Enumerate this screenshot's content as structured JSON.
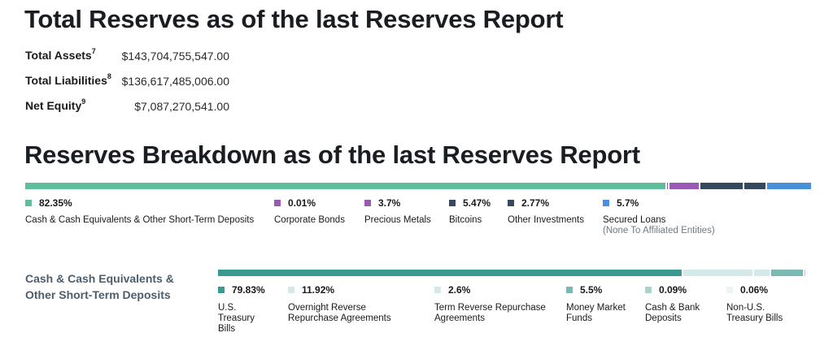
{
  "titles": {
    "total_reserves": "Total Reserves as of the last Reserves Report",
    "reserves_breakdown": "Reserves Breakdown as of the last Reserves Report"
  },
  "summary": [
    {
      "label": "Total Assets",
      "sup": "7",
      "value": "$143,704,755,547.00"
    },
    {
      "label": "Total Liabilities",
      "sup": "8",
      "value": "$136,617,485,006.00"
    },
    {
      "label": "Net Equity",
      "sup": "9",
      "value": "$7,087,270,541.00"
    }
  ],
  "breakdown": [
    {
      "pct": "82.35%",
      "value": 82.35,
      "name": "Cash & Cash Equivalents & Other Short-Term Deposits",
      "sub": "",
      "color": "#5fbf9c"
    },
    {
      "pct": "0.01%",
      "value": 0.01,
      "name": "Corporate Bonds",
      "sub": "",
      "color": "#9b59b6"
    },
    {
      "pct": "3.7%",
      "value": 3.7,
      "name": "Precious Metals",
      "sub": "",
      "color": "#9b59b6"
    },
    {
      "pct": "5.47%",
      "value": 5.47,
      "name": "Bitcoins",
      "sub": "",
      "color": "#34495e"
    },
    {
      "pct": "2.77%",
      "value": 2.77,
      "name": "Other Investments",
      "sub": "",
      "color": "#34495e"
    },
    {
      "pct": "5.7%",
      "value": 5.7,
      "name": "Secured Loans",
      "sub": "(None To Affiliated Entities)",
      "color": "#4a90d9"
    }
  ],
  "cash_breakdown": {
    "heading": "Cash & Cash Equivalents &\nOther Short-Term Deposits",
    "items": [
      {
        "pct": "79.83%",
        "value": 79.83,
        "name": "U.S.\nTreasury\nBills",
        "color": "#3a9a8f"
      },
      {
        "pct": "11.92%",
        "value": 11.92,
        "name": "Overnight Reverse\nRepurchase Agreements",
        "color": "#d5e9e8"
      },
      {
        "pct": "2.6%",
        "value": 2.6,
        "name": "Term Reverse Repurchase\nAgreements",
        "color": "#d5e9e8"
      },
      {
        "pct": "5.5%",
        "value": 5.5,
        "name": "Money Market\nFunds",
        "color": "#7ab8b2"
      },
      {
        "pct": "0.09%",
        "value": 0.09,
        "name": "Cash & Bank\nDeposits",
        "color": "#a9d3ce"
      },
      {
        "pct": "0.06%",
        "value": 0.06,
        "name": "Non-U.S.\nTreasury Bills",
        "color": "#eef4f4"
      }
    ]
  }
}
